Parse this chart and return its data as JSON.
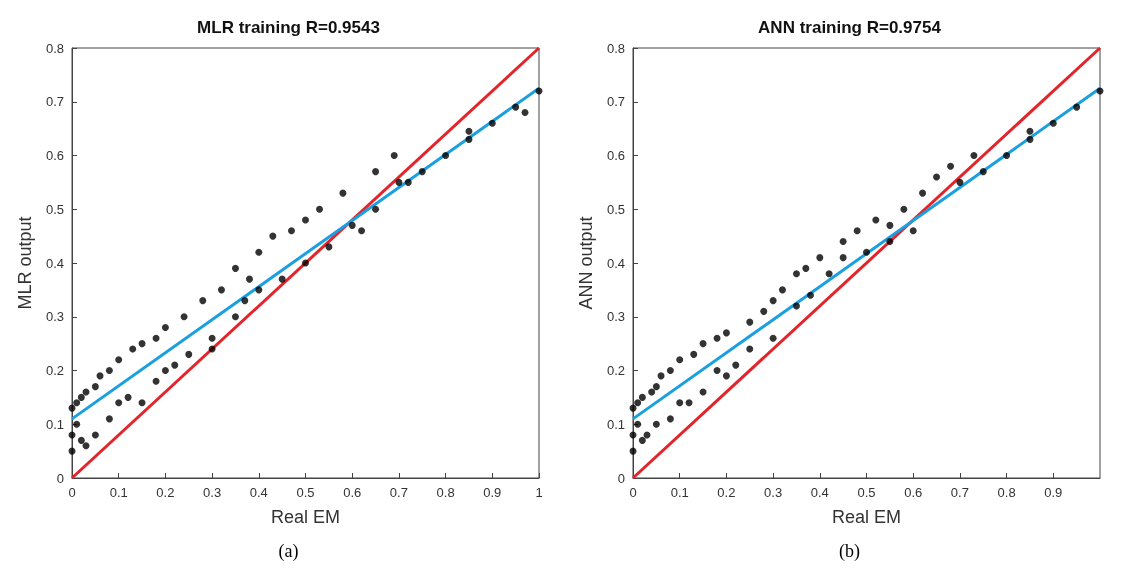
{
  "chart_data": [
    {
      "type": "scatter",
      "title": "MLR training R=0.9543",
      "xlabel": "Real EM",
      "ylabel": "MLR output",
      "annotations": [
        "(a)"
      ],
      "xlim": [
        0,
        1
      ],
      "ylim": [
        0,
        0.8
      ],
      "xticks": [
        0,
        0.1,
        0.2,
        0.3,
        0.4,
        0.5,
        0.6,
        0.7,
        0.8,
        0.9,
        1
      ],
      "yticks": [
        0,
        0.1,
        0.2,
        0.3,
        0.4,
        0.5,
        0.6,
        0.7,
        0.8
      ],
      "grid": false,
      "series": [
        {
          "marker": "circle",
          "color": "#000000",
          "x": [
            0,
            0,
            0,
            0.01,
            0.01,
            0.02,
            0.02,
            0.03,
            0.03,
            0.05,
            0.05,
            0.06,
            0.08,
            0.08,
            0.1,
            0.1,
            0.12,
            0.13,
            0.15,
            0.15,
            0.18,
            0.18,
            0.2,
            0.2,
            0.22,
            0.24,
            0.25,
            0.28,
            0.3,
            0.3,
            0.32,
            0.35,
            0.35,
            0.37,
            0.38,
            0.4,
            0.4,
            0.43,
            0.45,
            0.47,
            0.5,
            0.5,
            0.53,
            0.55,
            0.58,
            0.6,
            0.62,
            0.65,
            0.65,
            0.69,
            0.7,
            0.72,
            0.75,
            0.8,
            0.85,
            0.85,
            0.9,
            0.95,
            0.97,
            1
          ],
          "values": [
            0.05,
            0.08,
            0.13,
            0.1,
            0.14,
            0.07,
            0.15,
            0.06,
            0.16,
            0.08,
            0.17,
            0.19,
            0.11,
            0.2,
            0.14,
            0.22,
            0.15,
            0.24,
            0.14,
            0.25,
            0.18,
            0.26,
            0.2,
            0.28,
            0.21,
            0.3,
            0.23,
            0.33,
            0.24,
            0.26,
            0.35,
            0.39,
            0.3,
            0.33,
            0.37,
            0.42,
            0.35,
            0.45,
            0.37,
            0.46,
            0.4,
            0.48,
            0.5,
            0.43,
            0.53,
            0.47,
            0.46,
            0.57,
            0.5,
            0.6,
            0.55,
            0.55,
            0.57,
            0.6,
            0.645,
            0.63,
            0.66,
            0.69,
            0.68,
            0.72
          ]
        },
        {
          "type": "line",
          "color": "#e3242b",
          "x": [
            0,
            1
          ],
          "values": [
            0,
            0.8
          ]
        },
        {
          "type": "line",
          "color": "#1a9fe0",
          "x": [
            0,
            1
          ],
          "values": [
            0.11,
            0.725
          ]
        }
      ]
    },
    {
      "type": "scatter",
      "title": "ANN training R=0.9754",
      "xlabel": "Real EM",
      "ylabel": "ANN output",
      "annotations": [
        "(b)"
      ],
      "xlim": [
        0,
        1
      ],
      "ylim": [
        0,
        0.8
      ],
      "xticks": [
        0,
        0.1,
        0.2,
        0.3,
        0.4,
        0.5,
        0.6,
        0.7,
        0.8,
        0.9
      ],
      "yticks": [
        0,
        0.1,
        0.2,
        0.3,
        0.4,
        0.5,
        0.6,
        0.7,
        0.8
      ],
      "grid": false,
      "series": [
        {
          "marker": "circle",
          "color": "#000000",
          "x": [
            0,
            0,
            0,
            0.01,
            0.01,
            0.02,
            0.02,
            0.03,
            0.04,
            0.05,
            0.05,
            0.06,
            0.08,
            0.08,
            0.1,
            0.1,
            0.12,
            0.13,
            0.15,
            0.15,
            0.18,
            0.18,
            0.2,
            0.2,
            0.22,
            0.25,
            0.25,
            0.28,
            0.3,
            0.3,
            0.32,
            0.35,
            0.35,
            0.37,
            0.38,
            0.4,
            0.42,
            0.45,
            0.45,
            0.48,
            0.5,
            0.52,
            0.55,
            0.55,
            0.58,
            0.6,
            0.62,
            0.65,
            0.68,
            0.7,
            0.73,
            0.75,
            0.8,
            0.85,
            0.85,
            0.9,
            0.95,
            1
          ],
          "values": [
            0.05,
            0.08,
            0.13,
            0.1,
            0.14,
            0.07,
            0.15,
            0.08,
            0.16,
            0.1,
            0.17,
            0.19,
            0.11,
            0.2,
            0.14,
            0.22,
            0.14,
            0.23,
            0.16,
            0.25,
            0.2,
            0.26,
            0.19,
            0.27,
            0.21,
            0.24,
            0.29,
            0.31,
            0.26,
            0.33,
            0.35,
            0.38,
            0.32,
            0.39,
            0.34,
            0.41,
            0.38,
            0.44,
            0.41,
            0.46,
            0.42,
            0.48,
            0.47,
            0.44,
            0.5,
            0.46,
            0.53,
            0.56,
            0.58,
            0.55,
            0.6,
            0.57,
            0.6,
            0.645,
            0.63,
            0.66,
            0.69,
            0.72
          ]
        },
        {
          "type": "line",
          "color": "#e3242b",
          "x": [
            0,
            1
          ],
          "values": [
            0,
            0.8
          ]
        },
        {
          "type": "line",
          "color": "#1a9fe0",
          "x": [
            0,
            1
          ],
          "values": [
            0.11,
            0.725
          ]
        }
      ]
    }
  ]
}
